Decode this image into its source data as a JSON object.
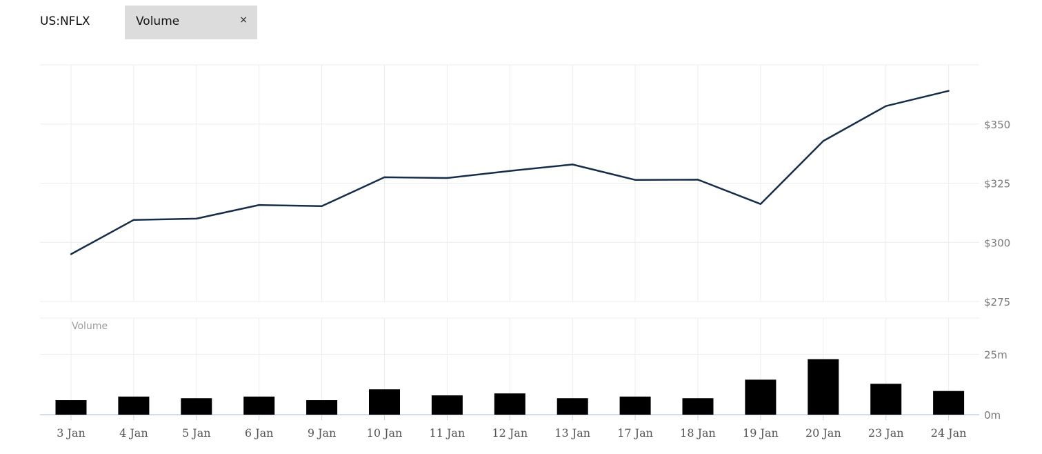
{
  "header": {
    "ticker": "US:NFLX",
    "indicator_chip": {
      "label": "Volume",
      "close_label": "×"
    }
  },
  "chart_data": [
    {
      "type": "line",
      "series": [
        {
          "values": [
            295,
            309.5,
            310,
            315.8,
            315.3,
            327.5,
            327.2,
            330.2,
            332.9,
            326.4,
            326.5,
            316.2,
            342.8,
            357.6,
            364
          ]
        }
      ],
      "categories": [
        "3 Jan",
        "4 Jan",
        "5 Jan",
        "6 Jan",
        "9 Jan",
        "10 Jan",
        "11 Jan",
        "12 Jan",
        "13 Jan",
        "17 Jan",
        "18 Jan",
        "19 Jan",
        "20 Jan",
        "23 Jan",
        "24 Jan"
      ],
      "y_ticks": [
        "$275",
        "$300",
        "$325",
        "$350"
      ],
      "y_tick_values": [
        275,
        300,
        325,
        350
      ],
      "ylim": [
        275,
        375
      ],
      "grid": true,
      "line_color": "#162d4a"
    },
    {
      "type": "bar",
      "panel_label": "Volume",
      "categories": [
        "3 Jan",
        "4 Jan",
        "5 Jan",
        "6 Jan",
        "9 Jan",
        "10 Jan",
        "11 Jan",
        "12 Jan",
        "13 Jan",
        "17 Jan",
        "18 Jan",
        "19 Jan",
        "20 Jan",
        "23 Jan",
        "24 Jan"
      ],
      "values": [
        6,
        7.5,
        6.8,
        7.5,
        6,
        10.5,
        8,
        8.8,
        6.8,
        7.5,
        6.8,
        14.5,
        23,
        12.8,
        9.8
      ],
      "unit": "m",
      "y_ticks": [
        "0m",
        "25m"
      ],
      "y_tick_values": [
        0,
        25
      ],
      "ylim": [
        0,
        40
      ],
      "grid": true,
      "bar_color": "#000000"
    }
  ]
}
